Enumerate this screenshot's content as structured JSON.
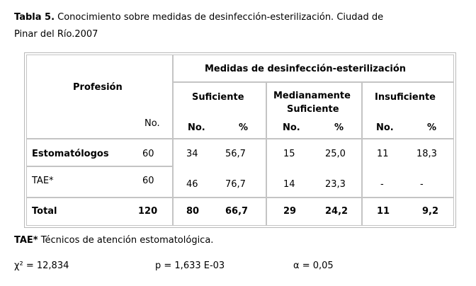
{
  "caption": {
    "label": "Tabla 5.",
    "line1": "Conocimiento sobre medidas de desinfección-esterilización. Ciudad de",
    "line2": "Pinar del Río.2007"
  },
  "header": {
    "profesion": "Profesión",
    "no": "No.",
    "group_title": "Medidas de desinfección-esterilización",
    "sub": [
      "Suficiente",
      "Medianamente",
      "Suficiente",
      "Insuficiente"
    ],
    "col_no": "No.",
    "col_pct": "%"
  },
  "rows": [
    {
      "name": "Estomatólogos",
      "n": "60",
      "s_no": "34",
      "s_pct": "56,7",
      "m_no": "15",
      "m_pct": "25,0",
      "i_no": "11",
      "i_pct": "18,3"
    },
    {
      "name": "TAE*",
      "n": "60",
      "s_no": "46",
      "s_pct": "76,7",
      "m_no": "14",
      "m_pct": "23,3",
      "i_no": "-",
      "i_pct": "-"
    },
    {
      "name": "Total",
      "n": "120",
      "s_no": "80",
      "s_pct": "66,7",
      "m_no": "29",
      "m_pct": "24,2",
      "i_no": "11",
      "i_pct": "9,2"
    }
  ],
  "footnote": {
    "label": "TAE*",
    "text": "Técnicos de atención estomatológica."
  },
  "stats": {
    "chi": "χ² = 12,834",
    "p": "p = 1,633 E-03",
    "alpha": "α = 0,05"
  }
}
